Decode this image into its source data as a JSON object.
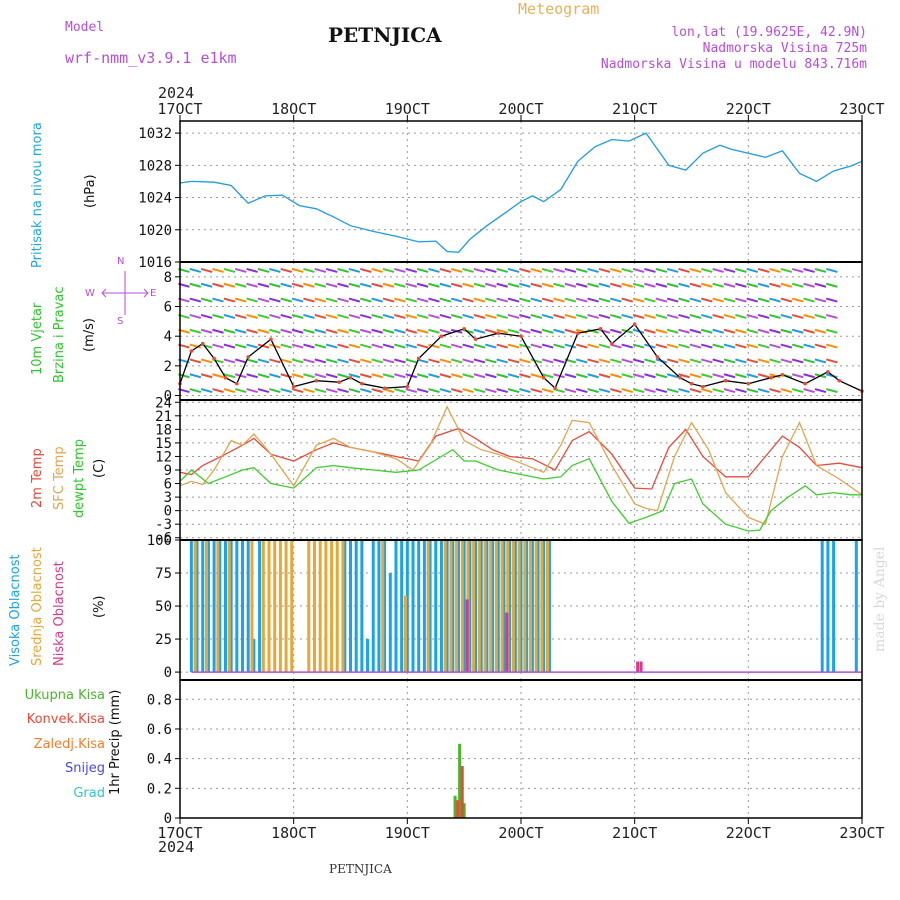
{
  "header": {
    "model_label": "Model",
    "model_name": "wrf-nmm_v3.9.1  e1km",
    "title": "PETNJICA",
    "subtitle": "Meteogram",
    "coords": "lon,lat (19.9625E, 42.9N)",
    "elevation": "Nadmorska Visina 725m",
    "model_elevation": "Nadmorska Visina u modelu 843.716m",
    "year_top": "2024",
    "year_bottom": "2024"
  },
  "footer": {
    "station": "PETNJICA",
    "credit": "made by Angel"
  },
  "colors": {
    "pressure": "#1e9be3",
    "temp2m": "#e84a3c",
    "sfc": "#e0a650",
    "dewpt": "#3fcc2e",
    "high_cloud": "#1aa3e8",
    "mid_cloud": "#e6a838",
    "low_cloud": "#d63a8a",
    "conv": "#e84a3c",
    "total": "#4cb32e",
    "snow": "#4848e8",
    "hail": "#2ec8c8",
    "frozen": "#f08030"
  },
  "x_ticks": [
    "17OCT",
    "18OCT",
    "19OCT",
    "20OCT",
    "21OCT",
    "22OCT",
    "23OCT"
  ],
  "chart_data": [
    {
      "type": "line",
      "panel": "pressure",
      "ylabel": [
        "Pritisak na nivou mora",
        "(hPa)"
      ],
      "yticks": [
        "1016",
        "1020",
        "1024",
        "1028",
        "1032"
      ],
      "ylim": [
        1016,
        1033.5
      ],
      "xlim": [
        0,
        6
      ],
      "grid": true,
      "series": [
        {
          "color": "pressure",
          "x": [
            0,
            0.1,
            0.3,
            0.45,
            0.6,
            0.75,
            0.9,
            1.05,
            1.2,
            1.35,
            1.5,
            1.7,
            1.9,
            2.1,
            2.25,
            2.35,
            2.45,
            2.55,
            2.7,
            2.85,
            3.0,
            3.1,
            3.2,
            3.35,
            3.5,
            3.65,
            3.8,
            3.95,
            4.1,
            4.2,
            4.3,
            4.45,
            4.6,
            4.75,
            4.85,
            5.0,
            5.15,
            5.3,
            5.45,
            5.6,
            5.75,
            5.9,
            6.0
          ],
          "y": [
            1025.8,
            1026.0,
            1025.9,
            1025.5,
            1023.3,
            1024.2,
            1024.3,
            1023.0,
            1022.6,
            1021.6,
            1020.5,
            1019.8,
            1019.2,
            1018.5,
            1018.6,
            1017.3,
            1017.2,
            1018.8,
            1020.5,
            1022.0,
            1023.5,
            1024.2,
            1023.5,
            1025.0,
            1028.5,
            1030.3,
            1031.2,
            1031.0,
            1032.0,
            1030.0,
            1028.0,
            1027.4,
            1029.5,
            1030.5,
            1030.0,
            1029.5,
            1029.0,
            1029.8,
            1027.0,
            1026.0,
            1027.3,
            1027.9,
            1028.5
          ]
        }
      ]
    },
    {
      "type": "line",
      "panel": "wind",
      "ylabel": [
        "10m Vjetar",
        "Brzina i Pravac",
        "(m/s)"
      ],
      "compass": [
        "N",
        "W",
        "E",
        "S"
      ],
      "yticks": [
        "0",
        "2",
        "4",
        "6",
        "8"
      ],
      "ylim": [
        -0.3,
        9
      ],
      "xlim": [
        0,
        6
      ],
      "grid": true,
      "series": [
        {
          "color": "#000000",
          "x": [
            0,
            0.1,
            0.2,
            0.3,
            0.4,
            0.5,
            0.6,
            0.8,
            1.0,
            1.2,
            1.4,
            1.5,
            1.6,
            1.8,
            2.0,
            2.1,
            2.3,
            2.5,
            2.6,
            2.8,
            3.0,
            3.2,
            3.3,
            3.5,
            3.7,
            3.8,
            4.0,
            4.2,
            4.4,
            4.5,
            4.6,
            4.8,
            5.0,
            5.2,
            5.3,
            5.5,
            5.7,
            5.8,
            6.0
          ],
          "y": [
            0.8,
            3.0,
            3.5,
            2.5,
            1.2,
            0.8,
            2.6,
            3.8,
            0.6,
            1.0,
            0.9,
            1.2,
            0.8,
            0.5,
            0.6,
            2.5,
            4.0,
            4.5,
            3.8,
            4.2,
            4.0,
            1.2,
            0.5,
            4.2,
            4.5,
            3.5,
            4.8,
            2.6,
            1.2,
            0.8,
            0.6,
            1.0,
            0.8,
            1.2,
            1.4,
            0.8,
            1.6,
            1.0,
            0.3
          ]
        }
      ]
    },
    {
      "type": "line",
      "panel": "temperature",
      "ylabel": [
        "2m Temp",
        "SFC Temp",
        "dewpt Temp",
        "(C)"
      ],
      "yticks": [
        "-6",
        "-3",
        "0",
        "3",
        "6",
        "9",
        "12",
        "15",
        "18",
        "21",
        "24"
      ],
      "ylim": [
        -6.5,
        24.5
      ],
      "xlim": [
        0,
        6
      ],
      "grid": true,
      "series": [
        {
          "color": "temp2m",
          "x": [
            0,
            0.1,
            0.2,
            0.4,
            0.55,
            0.65,
            0.8,
            1.0,
            1.2,
            1.35,
            1.5,
            1.7,
            1.9,
            2.1,
            2.25,
            2.45,
            2.6,
            2.75,
            2.9,
            3.1,
            3.3,
            3.45,
            3.6,
            3.8,
            4.0,
            4.15,
            4.3,
            4.45,
            4.6,
            4.8,
            5.0,
            5.15,
            5.3,
            5.45,
            5.6,
            5.8,
            6.0
          ],
          "y": [
            8.5,
            8.0,
            10.0,
            12.5,
            14.5,
            16.0,
            12.5,
            11.0,
            13.5,
            15.0,
            14.0,
            13.0,
            12.0,
            11.0,
            16.5,
            18.2,
            16.0,
            13.5,
            12.0,
            11.5,
            9.0,
            15.5,
            17.5,
            12.5,
            5.0,
            4.8,
            14.0,
            18.0,
            12.0,
            7.5,
            7.5,
            12.0,
            16.5,
            14.0,
            10.0,
            10.5,
            9.5
          ]
        },
        {
          "color": "sfc",
          "x": [
            0,
            0.1,
            0.2,
            0.3,
            0.45,
            0.55,
            0.65,
            0.8,
            1.0,
            1.2,
            1.35,
            1.5,
            1.7,
            1.9,
            2.05,
            2.2,
            2.35,
            2.5,
            2.65,
            2.8,
            3.0,
            3.2,
            3.35,
            3.45,
            3.6,
            3.8,
            4.0,
            4.1,
            4.2,
            4.35,
            4.5,
            4.65,
            4.8,
            5.0,
            5.15,
            5.3,
            5.45,
            5.6,
            5.8,
            6.0
          ],
          "y": [
            5.5,
            6.5,
            5.8,
            9.0,
            15.5,
            14.5,
            17.0,
            12.5,
            5.5,
            14.5,
            16.0,
            14.0,
            13.0,
            11.5,
            9.0,
            14.5,
            23.0,
            15.5,
            13.5,
            12.5,
            10.5,
            8.5,
            14.5,
            20.0,
            19.5,
            10.0,
            1.5,
            0.5,
            0.0,
            12.0,
            19.5,
            13.5,
            4.0,
            -1.5,
            -3.0,
            12.0,
            19.5,
            10.0,
            7.0,
            3.5
          ]
        },
        {
          "color": "dewpt",
          "x": [
            0,
            0.1,
            0.25,
            0.4,
            0.55,
            0.65,
            0.8,
            1.0,
            1.2,
            1.35,
            1.5,
            1.7,
            1.9,
            2.1,
            2.3,
            2.4,
            2.5,
            2.6,
            2.8,
            3.0,
            3.2,
            3.35,
            3.45,
            3.6,
            3.8,
            3.95,
            4.1,
            4.25,
            4.35,
            4.5,
            4.6,
            4.8,
            5.0,
            5.1,
            5.2,
            5.35,
            5.5,
            5.6,
            5.75,
            5.9,
            6.0
          ],
          "y": [
            6.5,
            9.0,
            6.0,
            7.5,
            9.0,
            9.5,
            6.0,
            5.0,
            9.5,
            10.0,
            9.5,
            9.0,
            8.5,
            9.0,
            12.0,
            13.5,
            11.0,
            11.0,
            9.0,
            8.0,
            7.0,
            7.5,
            10.0,
            11.5,
            2.0,
            -2.8,
            -1.5,
            0.0,
            6.0,
            7.0,
            1.5,
            -3.0,
            -4.5,
            -4.3,
            0.0,
            3.0,
            5.5,
            3.5,
            4.0,
            3.5,
            3.5
          ]
        }
      ]
    },
    {
      "type": "bar",
      "panel": "clouds",
      "ylabel": [
        "Visoka Oblacnost",
        "Srednja Oblacnost",
        "Niska Oblacnost",
        "(%)"
      ],
      "yticks": [
        "0",
        "25",
        "50",
        "75",
        "100"
      ],
      "ylim": [
        -6,
        100
      ],
      "xlim": [
        0,
        6
      ],
      "grid": true,
      "series": [
        {
          "name": "Visoka Oblacnost",
          "color": "high_cloud",
          "x": [
            0.1,
            0.15,
            0.2,
            0.25,
            0.3,
            0.35,
            0.4,
            0.45,
            0.5,
            0.55,
            0.6,
            0.65,
            0.7,
            1.45,
            1.5,
            1.55,
            1.6,
            1.65,
            1.7,
            1.75,
            1.8,
            1.85,
            1.9,
            1.95,
            2.0,
            2.05,
            2.1,
            2.15,
            2.2,
            2.25,
            2.3,
            2.35,
            2.4,
            2.45,
            2.5,
            2.55,
            2.6,
            2.65,
            2.7,
            2.75,
            2.8,
            2.85,
            2.9,
            2.95,
            3.0,
            3.05,
            3.1,
            3.15,
            3.2,
            3.25,
            5.65,
            5.7,
            5.75,
            5.95
          ],
          "values": [
            100,
            100,
            100,
            100,
            100,
            100,
            100,
            100,
            100,
            100,
            100,
            25,
            100,
            100,
            100,
            100,
            100,
            25,
            100,
            100,
            100,
            75,
            100,
            100,
            100,
            100,
            100,
            100,
            100,
            100,
            100,
            100,
            100,
            100,
            100,
            100,
            100,
            100,
            100,
            100,
            100,
            100,
            100,
            100,
            100,
            100,
            100,
            100,
            100,
            100,
            100,
            100,
            100,
            100
          ]
        },
        {
          "name": "Srednja Oblacnost",
          "color": "mid_cloud",
          "x": [
            0.12,
            0.22,
            0.32,
            0.42,
            0.62,
            0.72,
            0.77,
            0.82,
            0.87,
            0.92,
            0.97,
            1.12,
            1.17,
            1.22,
            1.27,
            1.32,
            1.37,
            1.42,
            1.77,
            1.97,
            2.17,
            2.32,
            2.37,
            2.42,
            2.47,
            2.52,
            2.57,
            2.62,
            2.67,
            2.72,
            2.77,
            2.82,
            2.87,
            2.92,
            2.97,
            3.02,
            3.07,
            3.12,
            3.17,
            3.22
          ],
          "values": [
            100,
            100,
            100,
            100,
            100,
            100,
            100,
            100,
            100,
            100,
            100,
            100,
            100,
            100,
            100,
            100,
            100,
            100,
            100,
            58,
            100,
            100,
            100,
            100,
            100,
            100,
            100,
            100,
            100,
            100,
            100,
            100,
            100,
            100,
            100,
            100,
            100,
            100,
            100,
            100
          ]
        },
        {
          "name": "Niska Oblacnost",
          "color": "low_cloud",
          "x": [
            2.5,
            2.85,
            4.0,
            4.03
          ],
          "values": [
            55,
            45,
            8,
            8
          ]
        }
      ]
    },
    {
      "type": "bar",
      "panel": "precip",
      "ylabel": [
        "1hr Precip (mm)"
      ],
      "legend": [
        "Ukupna Kisa",
        "Konvek.Kisa",
        "Zaledj.Kisa",
        "Snijeg",
        "Grad"
      ],
      "yticks": [
        "0",
        "0.2",
        "0.4",
        "0.6",
        "0.8"
      ],
      "ylim": [
        0,
        0.93
      ],
      "xlim": [
        0,
        6
      ],
      "grid": true,
      "series": [
        {
          "name": "Ukupna Kisa",
          "color": "total",
          "x": [
            2.42,
            2.46,
            2.5
          ],
          "values": [
            0.15,
            0.5,
            0.1
          ]
        },
        {
          "name": "Konvek.Kisa",
          "color": "conv",
          "x": [
            2.43,
            2.47
          ],
          "values": [
            0.12,
            0.35
          ]
        }
      ]
    }
  ]
}
